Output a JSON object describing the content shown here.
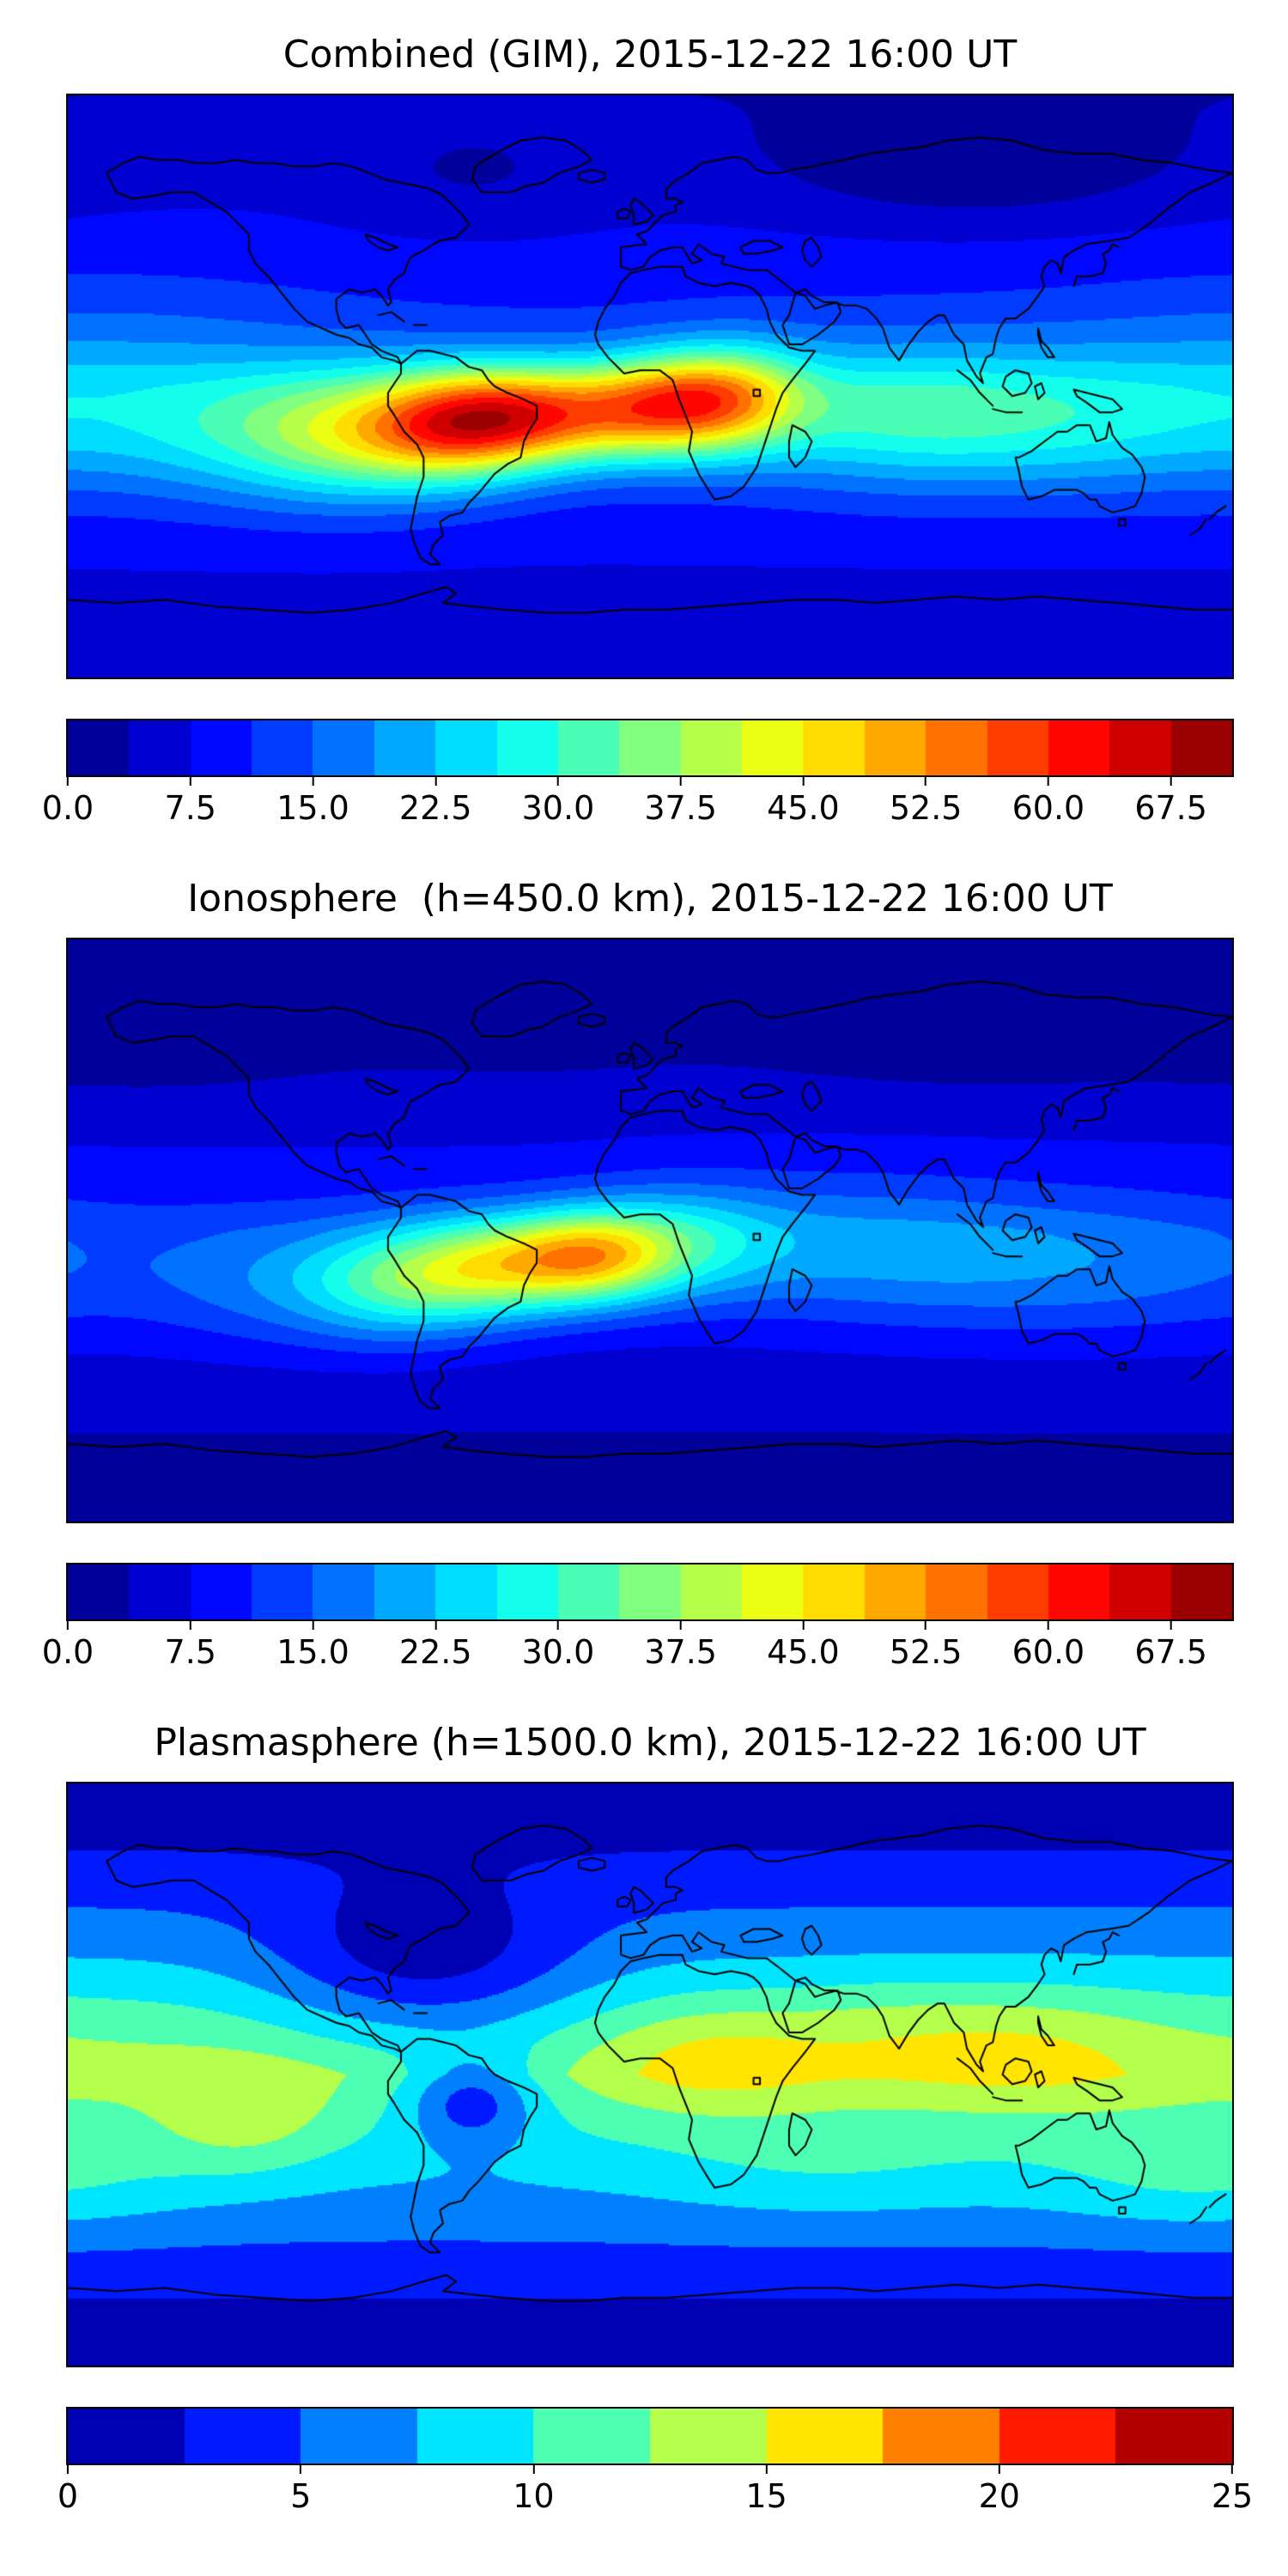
{
  "chart_data": [
    {
      "type": "heatmap",
      "title": "Combined (GIM), 2015-12-22 16:00 UT",
      "layer": "Combined (GIM)",
      "date": "2015-12-22",
      "time_ut": "16:00",
      "colormap": "jet",
      "projection": "equirectangular",
      "lon_range": [
        -180,
        180
      ],
      "lat_range": [
        -90,
        90
      ],
      "vmin": 0,
      "vmax": 71.25,
      "level_step": 3.75,
      "n_levels": 19,
      "colorbar_ticks": {
        "values": [
          0,
          7.5,
          15,
          22.5,
          30,
          37.5,
          45,
          52.5,
          60,
          67.5
        ],
        "labels": [
          "0.0",
          "7.5",
          "15.0",
          "22.5",
          "30.0",
          "37.5",
          "45.0",
          "52.5",
          "60.0",
          "67.5"
        ]
      },
      "peak": {
        "approx_value": 63,
        "lon": -35,
        "lat": -9
      },
      "field": {
        "base_equator": 13,
        "lat_falloff_per_deg": 0.1,
        "gaussians": [
          {
            "lon": -35,
            "lat": -9,
            "amp": 38,
            "sx": 24,
            "sy": 11
          },
          {
            "lon": -62,
            "lat": -13,
            "amp": 26,
            "sx": 20,
            "sy": 12
          },
          {
            "lon": 5,
            "lat": -6,
            "amp": 30,
            "sx": 18,
            "sy": 11
          },
          {
            "lon": 27,
            "lat": -3,
            "amp": 20,
            "sx": 16,
            "sy": 11
          },
          {
            "lon": -92,
            "lat": -15,
            "amp": 18,
            "sx": 24,
            "sy": 14
          },
          {
            "lon": -125,
            "lat": -14,
            "amp": 12,
            "sx": 32,
            "sy": 15
          },
          {
            "lon": 60,
            "lat": -8,
            "amp": 12,
            "sx": 35,
            "sy": 15
          },
          {
            "lon": 105,
            "lat": -10,
            "amp": 11,
            "sx": 38,
            "sy": 15
          },
          {
            "lon": 160,
            "lat": -12,
            "amp": 8,
            "sx": 40,
            "sy": 15
          },
          {
            "lon": -170,
            "lat": 8,
            "amp": 5,
            "sx": 50,
            "sy": 18
          },
          {
            "lon": 100,
            "lat": 68,
            "amp": -6,
            "sx": 45,
            "sy": 13
          },
          {
            "lon": -55,
            "lat": 62,
            "amp": -3,
            "sx": 30,
            "sy": 12
          }
        ]
      }
    },
    {
      "type": "heatmap",
      "title": "Ionosphere  (h=450.0 km), 2015-12-22 16:00 UT",
      "layer": "Ionosphere",
      "height_km": 450.0,
      "date": "2015-12-22",
      "time_ut": "16:00",
      "colormap": "jet",
      "projection": "equirectangular",
      "lon_range": [
        -180,
        180
      ],
      "lat_range": [
        -90,
        90
      ],
      "vmin": 0,
      "vmax": 71.25,
      "level_step": 3.75,
      "n_levels": 19,
      "colorbar_ticks": {
        "values": [
          0,
          7.5,
          15,
          22.5,
          30,
          37.5,
          45,
          52.5,
          60,
          67.5
        ],
        "labels": [
          "0.0",
          "7.5",
          "15.0",
          "22.5",
          "30.0",
          "37.5",
          "45.0",
          "52.5",
          "60.0",
          "67.5"
        ]
      },
      "peak": {
        "approx_value": 54,
        "lon": -18,
        "lat": -8
      },
      "field": {
        "base_equator": 10,
        "lat_falloff_per_deg": 0.1,
        "gaussians": [
          {
            "lon": -18,
            "lat": -8,
            "amp": 28,
            "sx": 18,
            "sy": 10
          },
          {
            "lon": -48,
            "lat": -11,
            "amp": 26,
            "sx": 22,
            "sy": 11
          },
          {
            "lon": -78,
            "lat": -17,
            "amp": 16,
            "sx": 22,
            "sy": 12
          },
          {
            "lon": 10,
            "lat": -4,
            "amp": 14,
            "sx": 22,
            "sy": 12
          },
          {
            "lon": -115,
            "lat": -16,
            "amp": 8,
            "sx": 30,
            "sy": 14
          },
          {
            "lon": 55,
            "lat": -5,
            "amp": 7,
            "sx": 35,
            "sy": 15
          },
          {
            "lon": 105,
            "lat": -10,
            "amp": 7,
            "sx": 40,
            "sy": 15
          },
          {
            "lon": 160,
            "lat": -12,
            "amp": 5,
            "sx": 40,
            "sy": 15
          },
          {
            "lon": 100,
            "lat": 66,
            "amp": -5,
            "sx": 50,
            "sy": 14
          },
          {
            "lon": -150,
            "lat": 62,
            "amp": -4,
            "sx": 40,
            "sy": 13
          },
          {
            "lon": -40,
            "lat": 65,
            "amp": -3,
            "sx": 35,
            "sy": 12
          }
        ]
      }
    },
    {
      "type": "heatmap",
      "title": "Plasmasphere (h=1500.0 km), 2015-12-22 16:00 UT",
      "layer": "Plasmasphere",
      "height_km": 1500.0,
      "date": "2015-12-22",
      "time_ut": "16:00",
      "colormap": "jet",
      "projection": "equirectangular",
      "lon_range": [
        -180,
        180
      ],
      "lat_range": [
        -90,
        90
      ],
      "vmin": 0,
      "vmax": 25,
      "level_step": 2.5,
      "n_levels": 10,
      "colorbar_ticks": {
        "values": [
          0,
          5,
          10,
          15,
          20,
          25
        ],
        "labels": [
          "0",
          "5",
          "10",
          "15",
          "20",
          "25"
        ]
      },
      "peak": {
        "approx_value": 16,
        "lon": 20,
        "lat": 6
      },
      "field": {
        "base_equator": 12.2,
        "lat_falloff_per_deg": 0.14,
        "gaussians": [
          {
            "lon": 20,
            "lat": 6,
            "amp": 4.5,
            "sx": 28,
            "sy": 13
          },
          {
            "lon": 115,
            "lat": 8,
            "amp": 4,
            "sx": 32,
            "sy": 14
          },
          {
            "lon": 72,
            "lat": 14,
            "amp": 2,
            "sx": 25,
            "sy": 12
          },
          {
            "lon": -125,
            "lat": -15,
            "amp": 3.5,
            "sx": 20,
            "sy": 12
          },
          {
            "lon": -70,
            "lat": 35,
            "amp": -6,
            "sx": 32,
            "sy": 16
          },
          {
            "lon": -55,
            "lat": -8,
            "amp": -7,
            "sx": 14,
            "sy": 10
          },
          {
            "lon": 170,
            "lat": -32,
            "amp": 3,
            "sx": 35,
            "sy": 12
          },
          {
            "lon": 55,
            "lat": -30,
            "amp": 2,
            "sx": 40,
            "sy": 12
          },
          {
            "lon": -165,
            "lat": 10,
            "amp": 1.5,
            "sx": 45,
            "sy": 15
          }
        ]
      }
    }
  ]
}
